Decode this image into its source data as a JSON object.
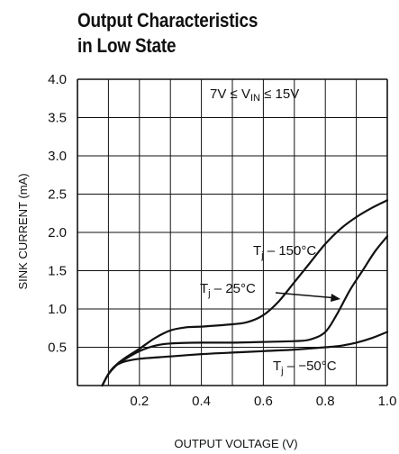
{
  "chart_data": {
    "type": "line",
    "title": "Output Characteristics",
    "subtitle": "in Low State",
    "xlabel": "OUTPUT VOLTAGE (V)",
    "ylabel": "SINK CURRENT (mA)",
    "xlim": [
      0,
      1.0
    ],
    "ylim": [
      0,
      4.0
    ],
    "x_ticks": [
      "0.2",
      "0.4",
      "0.6",
      "0.8",
      "1.0"
    ],
    "y_ticks": [
      "0.5",
      "1.0",
      "1.5",
      "2.0",
      "2.5",
      "3.0",
      "3.5",
      "4.0"
    ],
    "grid": true,
    "condition": {
      "lhs": "7V",
      "symbol": "≤",
      "var_main": "V",
      "var_sub": "IN",
      "rhs": "15V"
    },
    "series": [
      {
        "name": "150°C",
        "x": [
          0.08,
          0.1,
          0.12,
          0.15,
          0.2,
          0.25,
          0.3,
          0.35,
          0.4,
          0.5,
          0.55,
          0.6,
          0.65,
          0.7,
          0.75,
          0.8,
          0.85,
          0.9,
          0.95,
          1.0
        ],
        "y": [
          0.0,
          0.15,
          0.25,
          0.35,
          0.48,
          0.62,
          0.72,
          0.76,
          0.77,
          0.8,
          0.83,
          0.92,
          1.1,
          1.35,
          1.6,
          1.85,
          2.05,
          2.2,
          2.32,
          2.42
        ]
      },
      {
        "name": "25°C",
        "x": [
          0.08,
          0.1,
          0.13,
          0.16,
          0.2,
          0.25,
          0.3,
          0.4,
          0.5,
          0.6,
          0.7,
          0.75,
          0.8,
          0.84,
          0.88,
          0.92,
          0.96,
          1.0
        ],
        "y": [
          0.0,
          0.15,
          0.28,
          0.36,
          0.45,
          0.52,
          0.55,
          0.56,
          0.56,
          0.57,
          0.58,
          0.6,
          0.7,
          0.95,
          1.25,
          1.5,
          1.75,
          1.95
        ]
      },
      {
        "name": "-50°C",
        "x": [
          0.08,
          0.1,
          0.12,
          0.15,
          0.2,
          0.3,
          0.4,
          0.5,
          0.6,
          0.7,
          0.8,
          0.85,
          0.9,
          0.95,
          1.0
        ],
        "y": [
          0.0,
          0.15,
          0.25,
          0.31,
          0.35,
          0.38,
          0.41,
          0.43,
          0.45,
          0.47,
          0.5,
          0.52,
          0.56,
          0.62,
          0.7
        ]
      }
    ],
    "labels": [
      {
        "prefix": "T",
        "sub": "j",
        "sep": " – ",
        "value": "150°C"
      },
      {
        "prefix": "T",
        "sub": "j",
        "sep": " – ",
        "value": "25°C"
      },
      {
        "prefix": "T",
        "sub": "j",
        "sep": " – ",
        "value": "−50°C"
      }
    ]
  }
}
